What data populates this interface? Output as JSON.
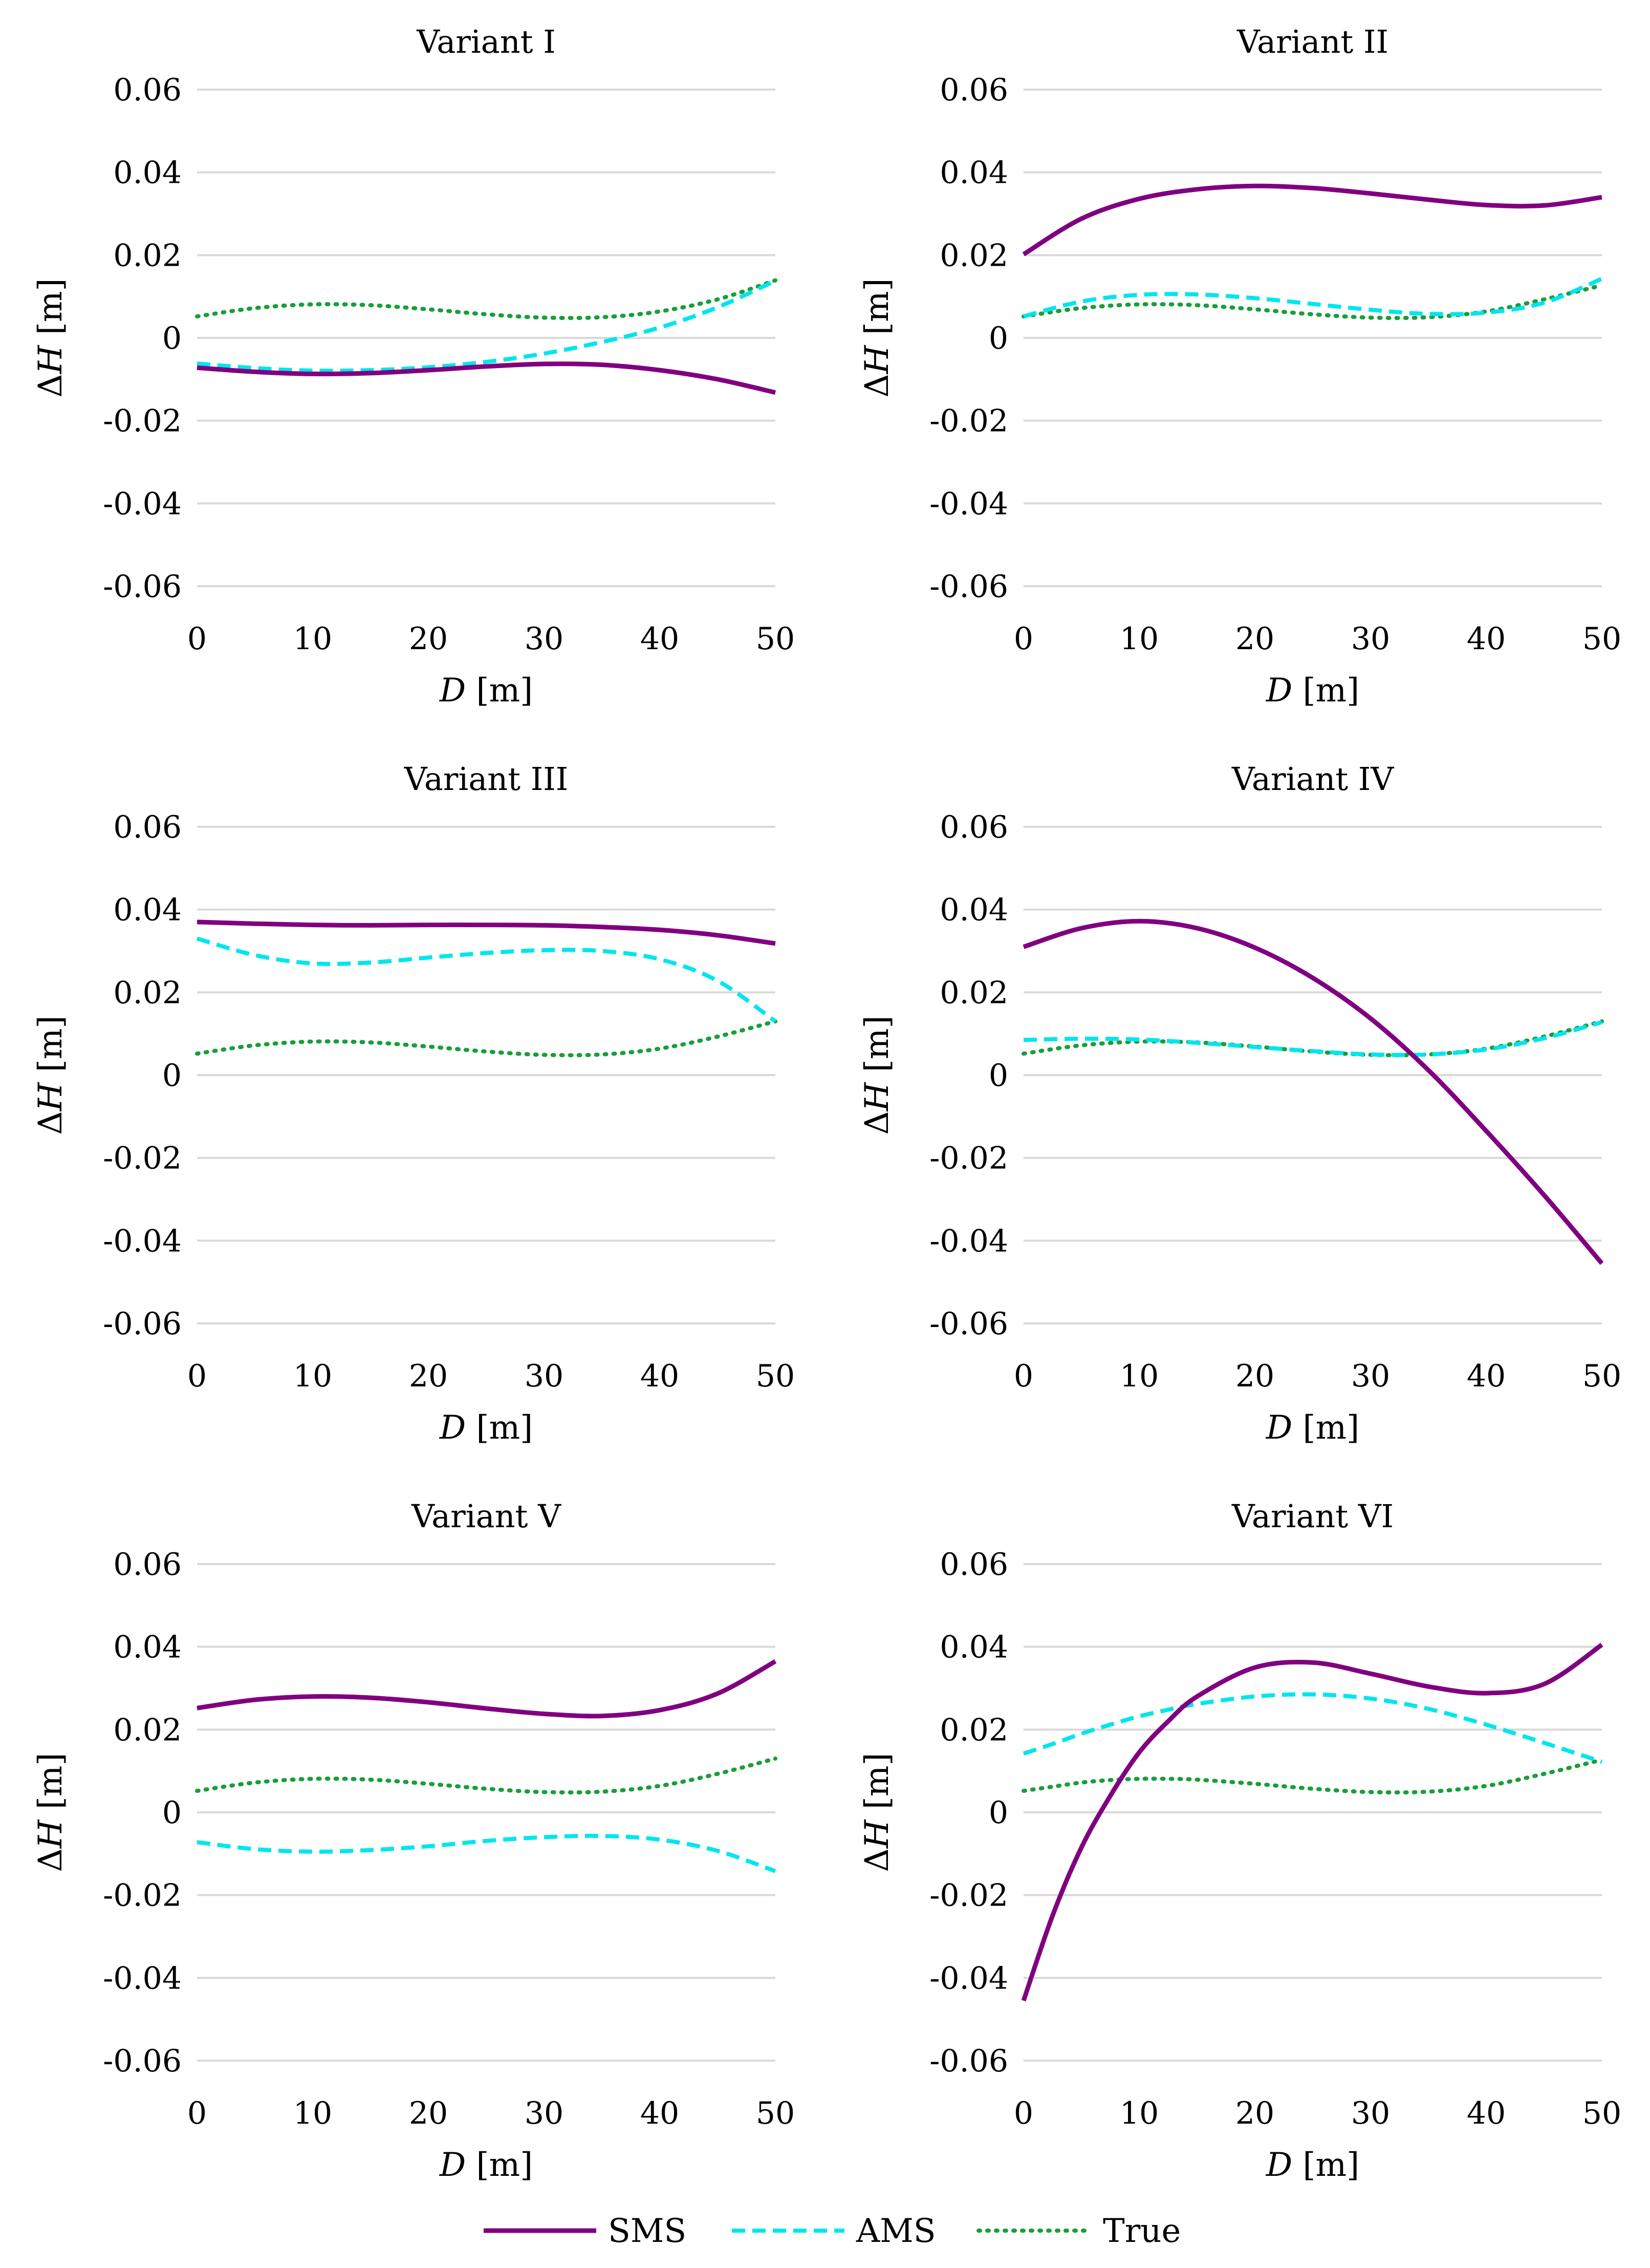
{
  "chart_data": [
    {
      "type": "line",
      "title": "Variant I",
      "xlabel_var": "D",
      "xlabel_unit": " [m]",
      "ylabel_prefix": "Δ",
      "ylabel_var": "H",
      "ylabel_unit": " [m]",
      "xlim": [
        0,
        50
      ],
      "ylim": [
        -0.06,
        0.06
      ],
      "xticks": [
        "0",
        "10",
        "20",
        "30",
        "40",
        "50"
      ],
      "yticks": [
        "0.06",
        "0.04",
        "0.02",
        "0",
        "-0.02",
        "-0.04",
        "-0.06"
      ],
      "x": [
        0,
        5,
        10,
        15,
        20,
        25,
        30,
        35,
        40,
        45,
        50
      ],
      "series": [
        {
          "name": "SMS",
          "values": [
            -0.0072,
            -0.0082,
            -0.0087,
            -0.0085,
            -0.0078,
            -0.0069,
            -0.0063,
            -0.0065,
            -0.0078,
            -0.01,
            -0.0132
          ]
        },
        {
          "name": "AMS",
          "values": [
            -0.0062,
            -0.0073,
            -0.0079,
            -0.0078,
            -0.0071,
            -0.0058,
            -0.0038,
            -0.001,
            0.0025,
            0.0074,
            0.0138
          ]
        },
        {
          "name": "True",
          "values": [
            0.0052,
            0.0072,
            0.0081,
            0.0079,
            0.0069,
            0.0057,
            0.0049,
            0.005,
            0.0064,
            0.0093,
            0.0139
          ]
        }
      ]
    },
    {
      "type": "line",
      "title": "Variant II",
      "xlabel_var": "D",
      "xlabel_unit": " [m]",
      "ylabel_prefix": "Δ",
      "ylabel_var": "H",
      "ylabel_unit": " [m]",
      "xlim": [
        0,
        50
      ],
      "ylim": [
        -0.06,
        0.06
      ],
      "xticks": [
        "0",
        "10",
        "20",
        "30",
        "40",
        "50"
      ],
      "yticks": [
        "0.06",
        "0.04",
        "0.02",
        "0",
        "-0.02",
        "-0.04",
        "-0.06"
      ],
      "x": [
        0,
        5,
        10,
        15,
        20,
        25,
        30,
        35,
        40,
        45,
        50
      ],
      "series": [
        {
          "name": "SMS",
          "values": [
            0.0202,
            0.0288,
            0.0336,
            0.0359,
            0.0367,
            0.0362,
            0.0349,
            0.0334,
            0.0321,
            0.032,
            0.034
          ]
        },
        {
          "name": "AMS",
          "values": [
            0.0052,
            0.0088,
            0.0104,
            0.0105,
            0.0096,
            0.0082,
            0.0068,
            0.0058,
            0.0061,
            0.0085,
            0.0143
          ]
        },
        {
          "name": "True",
          "values": [
            0.0052,
            0.0072,
            0.0081,
            0.0079,
            0.0069,
            0.0057,
            0.0049,
            0.005,
            0.0064,
            0.0093,
            0.0127
          ]
        }
      ]
    },
    {
      "type": "line",
      "title": "Variant III",
      "xlabel_var": "D",
      "xlabel_unit": " [m]",
      "ylabel_prefix": "Δ",
      "ylabel_var": "H",
      "ylabel_unit": " [m]",
      "xlim": [
        0,
        50
      ],
      "ylim": [
        -0.06,
        0.06
      ],
      "xticks": [
        "0",
        "10",
        "20",
        "30",
        "40",
        "50"
      ],
      "yticks": [
        "0.06",
        "0.04",
        "0.02",
        "0",
        "-0.02",
        "-0.04",
        "-0.06"
      ],
      "x": [
        0,
        5,
        10,
        15,
        20,
        25,
        30,
        35,
        40,
        45,
        50
      ],
      "series": [
        {
          "name": "SMS",
          "values": [
            0.037,
            0.0366,
            0.0363,
            0.0362,
            0.0363,
            0.0363,
            0.0362,
            0.0358,
            0.0351,
            0.0338,
            0.0318
          ]
        },
        {
          "name": "AMS",
          "values": [
            0.033,
            0.029,
            0.027,
            0.0272,
            0.0284,
            0.0295,
            0.0302,
            0.03,
            0.028,
            0.0228,
            0.013
          ]
        },
        {
          "name": "True",
          "values": [
            0.0052,
            0.0072,
            0.0081,
            0.0079,
            0.0069,
            0.0057,
            0.0049,
            0.005,
            0.0064,
            0.0093,
            0.013
          ]
        }
      ]
    },
    {
      "type": "line",
      "title": "Variant IV",
      "xlabel_var": "D",
      "xlabel_unit": " [m]",
      "ylabel_prefix": "Δ",
      "ylabel_var": "H",
      "ylabel_unit": " [m]",
      "xlim": [
        0,
        50
      ],
      "ylim": [
        -0.06,
        0.06
      ],
      "xticks": [
        "0",
        "10",
        "20",
        "30",
        "40",
        "50"
      ],
      "yticks": [
        "0.06",
        "0.04",
        "0.02",
        "0",
        "-0.02",
        "-0.04",
        "-0.06"
      ],
      "x": [
        0,
        5,
        10,
        15,
        20,
        25,
        30,
        35,
        40,
        45,
        50
      ],
      "series": [
        {
          "name": "SMS",
          "values": [
            0.031,
            0.0355,
            0.0372,
            0.0355,
            0.0308,
            0.0235,
            0.0137,
            0.0012,
            -0.0135,
            -0.029,
            -0.0455
          ]
        },
        {
          "name": "AMS",
          "values": [
            0.0085,
            0.0088,
            0.0086,
            0.0078,
            0.0068,
            0.0058,
            0.005,
            0.005,
            0.0062,
            0.0089,
            0.0128
          ]
        },
        {
          "name": "True",
          "values": [
            0.0052,
            0.0072,
            0.0081,
            0.0079,
            0.0069,
            0.0057,
            0.0049,
            0.005,
            0.0064,
            0.0093,
            0.013
          ]
        }
      ]
    },
    {
      "type": "line",
      "title": "Variant V",
      "xlabel_var": "D",
      "xlabel_unit": " [m]",
      "ylabel_prefix": "Δ",
      "ylabel_var": "H",
      "ylabel_unit": " [m]",
      "xlim": [
        0,
        50
      ],
      "ylim": [
        -0.06,
        0.06
      ],
      "xticks": [
        "0",
        "10",
        "20",
        "30",
        "40",
        "50"
      ],
      "yticks": [
        "0.06",
        "0.04",
        "0.02",
        "0",
        "-0.02",
        "-0.04",
        "-0.06"
      ],
      "x": [
        0,
        5,
        10,
        15,
        20,
        25,
        30,
        35,
        40,
        45,
        50
      ],
      "series": [
        {
          "name": "SMS",
          "values": [
            0.0252,
            0.0272,
            0.028,
            0.0277,
            0.0266,
            0.0251,
            0.0238,
            0.0233,
            0.0247,
            0.0287,
            0.0365
          ]
        },
        {
          "name": "AMS",
          "values": [
            -0.0072,
            -0.0089,
            -0.0095,
            -0.0091,
            -0.0082,
            -0.0069,
            -0.006,
            -0.0057,
            -0.0066,
            -0.0093,
            -0.0142
          ]
        },
        {
          "name": "True",
          "values": [
            0.0052,
            0.0072,
            0.0081,
            0.0079,
            0.0069,
            0.0057,
            0.0049,
            0.005,
            0.0064,
            0.0093,
            0.013
          ]
        }
      ]
    },
    {
      "type": "line",
      "title": "Variant VI",
      "xlabel_var": "D",
      "xlabel_unit": " [m]",
      "ylabel_prefix": "Δ",
      "ylabel_var": "H",
      "ylabel_unit": " [m]",
      "xlim": [
        0,
        50
      ],
      "ylim": [
        -0.06,
        0.06
      ],
      "xticks": [
        "0",
        "10",
        "20",
        "30",
        "40",
        "50"
      ],
      "yticks": [
        "0.06",
        "0.04",
        "0.02",
        "0",
        "-0.02",
        "-0.04",
        "-0.06"
      ],
      "x": [
        0,
        2.5,
        5,
        7.5,
        10,
        12.5,
        15,
        20,
        25,
        30,
        35,
        40,
        45,
        50
      ],
      "series": [
        {
          "name": "SMS",
          "values": [
            -0.0455,
            -0.025,
            -0.0085,
            0.004,
            0.0145,
            0.022,
            0.028,
            0.035,
            0.0362,
            0.0335,
            0.0304,
            0.0288,
            0.031,
            0.0405
          ]
        },
        {
          "name": "AMS",
          "values": [
            0.0142,
            0.0165,
            0.019,
            0.0212,
            0.0232,
            0.0248,
            0.0262,
            0.028,
            0.0285,
            0.0275,
            0.025,
            0.0212,
            0.0168,
            0.0122
          ]
        },
        {
          "name": "True",
          "values": [
            0.0052,
            0.0062,
            0.0072,
            0.0078,
            0.0081,
            0.0081,
            0.0079,
            0.0069,
            0.0057,
            0.0049,
            0.005,
            0.0064,
            0.0093,
            0.0127
          ]
        }
      ]
    }
  ],
  "legend": {
    "position": "bottom-center",
    "entries": [
      "SMS",
      "AMS",
      "True"
    ]
  },
  "colors": {
    "SMS": "#800080",
    "AMS": "#00e5ee",
    "True": "#1a9e3a",
    "grid": "#d9d9d9"
  }
}
